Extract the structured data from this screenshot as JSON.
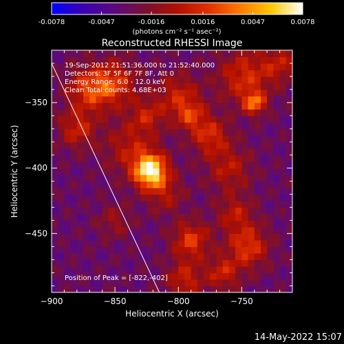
{
  "colorbar": {
    "ticks": [
      "-0.0078",
      "-0.0047",
      "-0.0016",
      "0.0016",
      "0.0047",
      "0.0078"
    ],
    "range": [
      -0.0078,
      0.0078
    ],
    "unit_label": "(photons cm⁻² s⁻¹ asec⁻²)",
    "colormap": [
      "#0000ff",
      "#3a00b0",
      "#5a0a80",
      "#7a1030",
      "#b01000",
      "#e23000",
      "#ff7a00",
      "#ffc800",
      "#ffffff"
    ]
  },
  "chart_data": {
    "type": "heatmap",
    "title": "Reconstructed RHESSI Image",
    "xlabel": "Heliocentric X (arcsec)",
    "ylabel": "Heliocentric Y (arcsec)",
    "xlim": [
      -900,
      -710
    ],
    "ylim": [
      -495,
      -310
    ],
    "x_ticks": [
      -900,
      -850,
      -800,
      -750
    ],
    "y_ticks": [
      -350,
      -400,
      -450
    ],
    "peak": {
      "x": -822,
      "y": -402
    },
    "annotations": {
      "time_range": "19-Sep-2012 21:51:36.000 to 21:52:40.000",
      "detectors": "Detectors: 3F 5F 6F 7F 8F, Att 0",
      "energy": "Energy Range: 6.0 - 12.0 keV",
      "clean": "Clean     Total counts: 4.68E+03",
      "peak_text": "Position of Peak = [-822,-402]"
    },
    "limb_line": [
      [
        -900,
        -320
      ],
      [
        -815,
        -495
      ]
    ],
    "grid": false
  },
  "footer": {
    "date": "14-May-2022 15:07"
  }
}
